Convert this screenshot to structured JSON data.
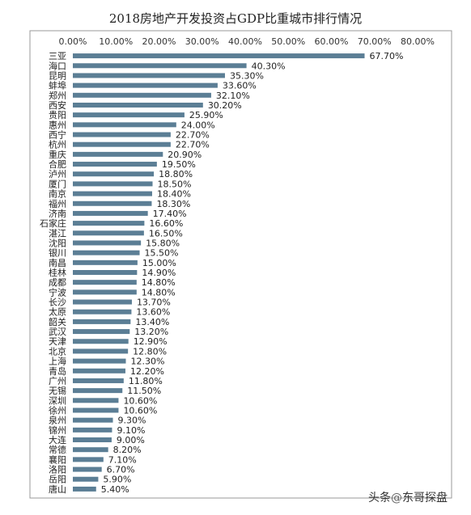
{
  "chart_data": {
    "type": "bar",
    "orientation": "horizontal",
    "title": "2018房地产开发投资占GDP比重城市排行情况",
    "xlabel": "",
    "ylabel": "",
    "xlim": [
      0,
      80
    ],
    "x_tick_labels": [
      "0.00%",
      "10.00%",
      "20.00%",
      "30.00%",
      "40.00%",
      "50.00%",
      "60.00%",
      "70.00%",
      "80.00%"
    ],
    "x_tick_values": [
      0,
      10,
      20,
      30,
      40,
      50,
      60,
      70,
      80
    ],
    "axis_position": "top",
    "grid": false,
    "bar_color": "#5b7e95",
    "categories": [
      "三亚",
      "海口",
      "昆明",
      "蚌埠",
      "郑州",
      "西安",
      "贵阳",
      "惠州",
      "西宁",
      "杭州",
      "重庆",
      "合肥",
      "泸州",
      "厦门",
      "南京",
      "福州",
      "济南",
      "石家庄",
      "湛江",
      "沈阳",
      "银川",
      "南昌",
      "桂林",
      "成都",
      "宁波",
      "长沙",
      "太原",
      "韶关",
      "武汉",
      "天津",
      "北京",
      "上海",
      "青岛",
      "广州",
      "无锡",
      "深圳",
      "徐州",
      "泉州",
      "锦州",
      "大连",
      "常德",
      "襄阳",
      "洛阳",
      "岳阳",
      "唐山"
    ],
    "values": [
      67.7,
      40.3,
      35.3,
      33.6,
      32.1,
      30.2,
      25.9,
      24.0,
      22.7,
      22.7,
      20.9,
      19.5,
      18.8,
      18.5,
      18.4,
      18.3,
      17.4,
      16.6,
      16.5,
      15.8,
      15.5,
      15.0,
      14.9,
      14.8,
      14.8,
      13.7,
      13.6,
      13.4,
      13.2,
      12.9,
      12.8,
      12.3,
      12.2,
      11.8,
      11.5,
      10.6,
      10.6,
      9.3,
      9.1,
      9.0,
      8.2,
      7.1,
      6.7,
      5.9,
      5.4
    ],
    "data_labels": [
      "67.70%",
      "40.30%",
      "35.30%",
      "33.60%",
      "32.10%",
      "30.20%",
      "25.90%",
      "24.00%",
      "22.70%",
      "22.70%",
      "20.90%",
      "19.50%",
      "18.80%",
      "18.50%",
      "18.40%",
      "18.30%",
      "17.40%",
      "16.60%",
      "16.50%",
      "15.80%",
      "15.50%",
      "15.00%",
      "14.90%",
      "14.80%",
      "14.80%",
      "13.70%",
      "13.60%",
      "13.40%",
      "13.20%",
      "12.90%",
      "12.80%",
      "12.30%",
      "12.20%",
      "11.80%",
      "11.50%",
      "10.60%",
      "10.60%",
      "9.30%",
      "9.10%",
      "9.00%",
      "8.20%",
      "7.10%",
      "6.70%",
      "5.90%",
      "5.40%"
    ]
  },
  "watermark": {
    "prefix": "头条",
    "at": "@",
    "handle": "东哥探盘"
  }
}
